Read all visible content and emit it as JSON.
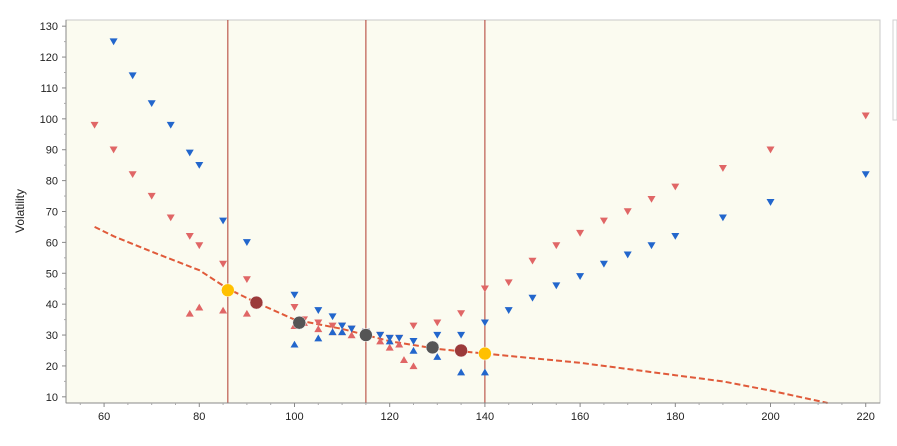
{
  "chart_data": {
    "type": "scatter",
    "title": "",
    "xlabel": "",
    "ylabel": "Volatility",
    "xlim": [
      52,
      223
    ],
    "ylim": [
      8,
      132
    ],
    "x_ticks": [
      60,
      80,
      100,
      120,
      140,
      160,
      180,
      200,
      220
    ],
    "y_ticks": [
      10,
      20,
      30,
      40,
      50,
      60,
      70,
      80,
      90,
      100,
      110,
      120,
      130
    ],
    "grid": false,
    "background_color": "#fbfbf0",
    "vertical_lines": [
      {
        "x": 86,
        "color": "#b03a2e"
      },
      {
        "x": 115,
        "color": "#b03a2e"
      },
      {
        "x": 140,
        "color": "#b03a2e"
      }
    ],
    "series": [
      {
        "marker": "triangle-down",
        "color": "#e06666",
        "points": [
          [
            58,
            98
          ],
          [
            62,
            90
          ],
          [
            66,
            82
          ],
          [
            70,
            75
          ],
          [
            74,
            68
          ],
          [
            78,
            62
          ],
          [
            80,
            59
          ],
          [
            85,
            53
          ],
          [
            90,
            48
          ],
          [
            100,
            39
          ],
          [
            102,
            35
          ],
          [
            105,
            34
          ],
          [
            108,
            33
          ],
          [
            110,
            33
          ],
          [
            112,
            32
          ],
          [
            115,
            31
          ],
          [
            118,
            30
          ],
          [
            120,
            29
          ],
          [
            122,
            29
          ],
          [
            125,
            33
          ],
          [
            130,
            34
          ],
          [
            135,
            37
          ],
          [
            140,
            45
          ],
          [
            145,
            47
          ],
          [
            150,
            54
          ],
          [
            155,
            59
          ],
          [
            160,
            63
          ],
          [
            165,
            67
          ],
          [
            170,
            70
          ],
          [
            175,
            74
          ],
          [
            180,
            78
          ],
          [
            190,
            84
          ],
          [
            200,
            90
          ],
          [
            220,
            101
          ]
        ]
      },
      {
        "marker": "triangle-up",
        "color": "#e06666",
        "points": [
          [
            78,
            37
          ],
          [
            80,
            39
          ],
          [
            85,
            38
          ],
          [
            90,
            37
          ],
          [
            100,
            33
          ],
          [
            102,
            34
          ],
          [
            105,
            32
          ],
          [
            108,
            31
          ],
          [
            110,
            31
          ],
          [
            112,
            30
          ],
          [
            115,
            30
          ],
          [
            118,
            28
          ],
          [
            120,
            26
          ],
          [
            122,
            27
          ],
          [
            123,
            22
          ],
          [
            125,
            20
          ]
        ]
      },
      {
        "marker": "triangle-down",
        "color": "#2266cc",
        "points": [
          [
            62,
            125
          ],
          [
            66,
            114
          ],
          [
            70,
            105
          ],
          [
            74,
            98
          ],
          [
            78,
            89
          ],
          [
            80,
            85
          ],
          [
            85,
            67
          ],
          [
            90,
            60
          ],
          [
            100,
            43
          ],
          [
            105,
            38
          ],
          [
            108,
            36
          ],
          [
            110,
            33
          ],
          [
            112,
            32
          ],
          [
            115,
            31
          ],
          [
            118,
            30
          ],
          [
            120,
            29
          ],
          [
            122,
            29
          ],
          [
            125,
            28
          ],
          [
            130,
            30
          ],
          [
            135,
            30
          ],
          [
            140,
            34
          ],
          [
            145,
            38
          ],
          [
            150,
            42
          ],
          [
            155,
            46
          ],
          [
            160,
            49
          ],
          [
            165,
            53
          ],
          [
            170,
            56
          ],
          [
            175,
            59
          ],
          [
            180,
            62
          ],
          [
            190,
            68
          ],
          [
            200,
            73
          ],
          [
            220,
            82
          ]
        ]
      },
      {
        "marker": "triangle-up",
        "color": "#2266cc",
        "points": [
          [
            100,
            27
          ],
          [
            105,
            29
          ],
          [
            108,
            31
          ],
          [
            110,
            31
          ],
          [
            115,
            31
          ],
          [
            120,
            28
          ],
          [
            125,
            25
          ],
          [
            130,
            23
          ],
          [
            135,
            18
          ],
          [
            140,
            18
          ]
        ]
      }
    ],
    "trend_line": {
      "style": "dashed",
      "color": "#e05a3a",
      "points": [
        [
          58,
          65
        ],
        [
          62,
          62
        ],
        [
          70,
          57
        ],
        [
          80,
          51
        ],
        [
          86,
          45
        ],
        [
          92,
          40.5
        ],
        [
          100,
          35
        ],
        [
          110,
          32
        ],
        [
          115,
          30
        ],
        [
          120,
          28
        ],
        [
          130,
          25.5
        ],
        [
          140,
          24
        ],
        [
          150,
          22.5
        ],
        [
          160,
          21
        ],
        [
          170,
          19
        ],
        [
          180,
          17
        ],
        [
          190,
          15
        ],
        [
          200,
          12
        ],
        [
          212,
          8
        ]
      ]
    },
    "markers": [
      {
        "x": 86,
        "y": 44.5,
        "color": "#ffc000"
      },
      {
        "x": 92,
        "y": 40.5,
        "color": "#9b3a3a"
      },
      {
        "x": 101,
        "y": 34,
        "color": "#555555"
      },
      {
        "x": 115,
        "y": 30,
        "color": "#555555"
      },
      {
        "x": 129,
        "y": 26,
        "color": "#555555"
      },
      {
        "x": 135,
        "y": 25,
        "color": "#9b3a3a"
      },
      {
        "x": 140,
        "y": 24,
        "color": "#ffc000"
      }
    ]
  }
}
